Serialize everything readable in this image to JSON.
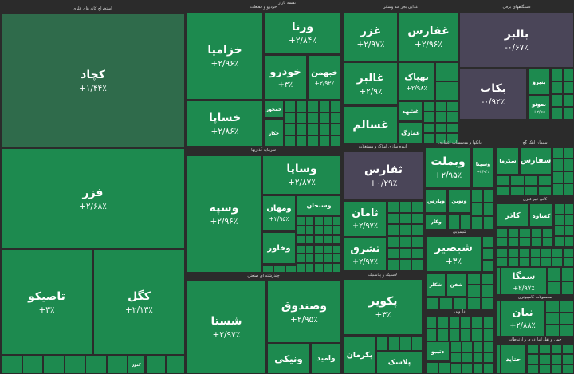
{
  "header": {
    "title": "نقشه بازار"
  },
  "sectors": [
    {
      "label": "استخراج کانه های فلزی",
      "tiles": [
        {
          "name": "کچاد",
          "change": "+۱/۴۴٪",
          "color": "#2f6b4b"
        },
        {
          "name": "فزر",
          "change": "+۲/۶۸٪",
          "color": "#1d8a4f"
        },
        {
          "name": "تاصیکو",
          "change": "+۳٪",
          "color": "#1d8a4f"
        },
        {
          "name": "کگل",
          "change": "+۲/۱۳٪",
          "color": "#1d8a4f"
        },
        {
          "name": "کنور",
          "color": "#1d8a4f"
        }
      ]
    },
    {
      "label": "خودرو و قطعات",
      "tiles": [
        {
          "name": "خزامیا",
          "change": "+۲/۹۶٪",
          "color": "#1d8a4f"
        },
        {
          "name": "ورنا",
          "change": "+۲/۸۴٪",
          "color": "#1d8a4f"
        },
        {
          "name": "خودرو",
          "change": "+۳٪",
          "color": "#1d8a4f"
        },
        {
          "name": "خبهمن",
          "change": "+۲/۹۲٪",
          "color": "#1d8a4f"
        },
        {
          "name": "خساپا",
          "change": "+۲/۸۶٪",
          "color": "#1d8a4f"
        },
        {
          "name": "خمحور",
          "color": "#1d8a4f"
        },
        {
          "name": "خکار",
          "color": "#1d8a4f"
        }
      ]
    },
    {
      "label": "سرمایه گذاریها",
      "tiles": [
        {
          "name": "وسپه",
          "change": "+۲/۹۶٪",
          "color": "#1d8a4f"
        },
        {
          "name": "وساپا",
          "change": "+۲/۸۷٪",
          "color": "#1d8a4f"
        },
        {
          "name": "ومهان",
          "change": "+۲/۹۵٪",
          "color": "#1d8a4f"
        },
        {
          "name": "وسبحان",
          "color": "#1d8a4f"
        },
        {
          "name": "وخاور",
          "color": "#1d8a4f"
        }
      ]
    },
    {
      "label": "چندرشته ای صنعتی",
      "tiles": [
        {
          "name": "شستا",
          "change": "+۲/۹۷٪",
          "color": "#1d8a4f"
        },
        {
          "name": "وصندوق",
          "change": "+۲/۹۵٪",
          "color": "#1d8a4f"
        },
        {
          "name": "ونیکی",
          "color": "#1d8a4f"
        },
        {
          "name": "وامید",
          "color": "#1d8a4f"
        }
      ]
    },
    {
      "label": "غذایی بجز قند وشکر",
      "tiles": [
        {
          "name": "غزر",
          "change": "+۲/۹۷٪",
          "color": "#1d8a4f"
        },
        {
          "name": "غفارس",
          "change": "+۲/۹۶٪",
          "color": "#1d8a4f"
        },
        {
          "name": "غالبر",
          "change": "+۲/۹٪",
          "color": "#1d8a4f"
        },
        {
          "name": "غسالم",
          "color": "#1d8a4f"
        },
        {
          "name": "بهپاک",
          "change": "+۲/۹۸٪",
          "color": "#1d8a4f"
        },
        {
          "name": "غشهد",
          "color": "#1d8a4f"
        },
        {
          "name": "غمارگ",
          "color": "#1d8a4f"
        }
      ]
    },
    {
      "label": "دستگاههای برقی",
      "tiles": [
        {
          "name": "بالبر",
          "change": "-۰/۶۷٪",
          "color": "#4a4558"
        },
        {
          "name": "بکاب",
          "change": "-۰/۹۲٪",
          "color": "#4a4558"
        },
        {
          "name": "بموتو",
          "change": "+۲/۹٪",
          "color": "#1d8a4f"
        },
        {
          "name": "بنیرو",
          "color": "#1d8a4f"
        }
      ]
    },
    {
      "label": "انبوه سازی املاک و مستغلات",
      "tiles": [
        {
          "name": "ثفارس",
          "change": "+۰/۲۹٪",
          "color": "#4a4558"
        },
        {
          "name": "ثامان",
          "change": "+۲/۹۷٪",
          "color": "#1d8a4f"
        },
        {
          "name": "ثشرق",
          "change": "+۲/۹۷٪",
          "color": "#1d8a4f"
        }
      ]
    },
    {
      "label": "بانکها و موسسات اعتباری",
      "tiles": [
        {
          "name": "وبملت",
          "change": "+۲/۹۵٪",
          "color": "#1d8a4f"
        },
        {
          "name": "وسینا",
          "change": "+۲/۹۴٪",
          "color": "#1d8a4f"
        },
        {
          "name": "وپارس",
          "color": "#1d8a4f"
        },
        {
          "name": "ونوین",
          "color": "#1d8a4f"
        },
        {
          "name": "وکار",
          "color": "#1d8a4f"
        }
      ]
    },
    {
      "label": "سیمان آهک گچ",
      "tiles": [
        {
          "name": "سکرما",
          "color": "#1d8a4f"
        },
        {
          "name": "سفارس",
          "color": "#1d8a4f"
        }
      ]
    },
    {
      "label": "کانی غیر فلزی",
      "tiles": [
        {
          "name": "کاذر",
          "color": "#1d8a4f"
        },
        {
          "name": "کساوه",
          "color": "#1d8a4f"
        }
      ]
    },
    {
      "label": "شیمیایی",
      "tiles": [
        {
          "name": "شبصیر",
          "change": "+۳٪",
          "color": "#1d8a4f"
        },
        {
          "name": "شکلر",
          "color": "#1d8a4f"
        },
        {
          "name": "شفن",
          "color": "#1d8a4f"
        }
      ]
    },
    {
      "tiles": [
        {
          "name": "سمگا",
          "change": "+۲/۹۷٪",
          "color": "#1d8a4f"
        }
      ]
    },
    {
      "label": "لاستیک و پلاستیک",
      "tiles": [
        {
          "name": "پکویر",
          "change": "+۳٪",
          "color": "#1d8a4f"
        },
        {
          "name": "پکرمان",
          "color": "#1d8a4f"
        },
        {
          "name": "پلاسک",
          "color": "#1d8a4f"
        }
      ]
    },
    {
      "label": "داروئی",
      "tiles": [
        {
          "name": "دتیبو",
          "color": "#1d8a4f"
        }
      ]
    },
    {
      "label": "محصولات کامپیوتری",
      "tiles": [
        {
          "name": "نیان",
          "change": "+۲/۸۸٪",
          "color": "#1d8a4f"
        }
      ]
    },
    {
      "label": "حمل و نقل انبارداری و ارتباطات",
      "tiles": [
        {
          "name": "حتاید",
          "color": "#1d8a4f"
        }
      ]
    }
  ]
}
